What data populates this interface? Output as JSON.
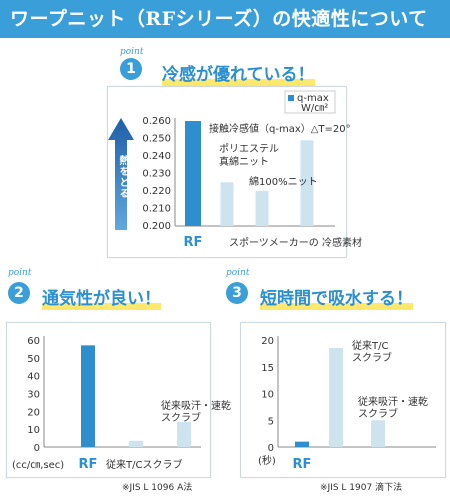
{
  "page": {
    "title": "ワープニット（RFシリーズ）の快適性について"
  },
  "colors": {
    "header": "#3a9fd8",
    "bar_dark": "#2f8fce",
    "bar_light": "#cde4ef",
    "accent_text": "#2c8fcf",
    "highlight": "#ffe86b"
  },
  "sections": [
    {
      "point_word": "point",
      "number": "1",
      "heading": "冷感が優れている！"
    },
    {
      "point_word": "point",
      "number": "2",
      "heading": "通気性が良い！"
    },
    {
      "point_word": "point",
      "number": "3",
      "heading": "短時間で吸水する！"
    }
  ],
  "chart_data": [
    {
      "type": "bar",
      "series_label": "q-max W/㎝²",
      "legend_line1": "q-max",
      "legend_line2": "W/㎝²",
      "legend_placement": "top-right",
      "subtitle": "接触冷感値（q-max）△T=20°",
      "arrow_label": "熱をとる",
      "yticks": [
        "0.260",
        "0.250",
        "0.240",
        "0.230",
        "0.220",
        "0.210",
        "0.200"
      ],
      "ylim": [
        0.2,
        0.26
      ],
      "categories": [
        "RF",
        "ポリエステル\n真綿ニット",
        "綿100%ニット",
        "スポーツメーカーの冷感素材"
      ],
      "values": [
        0.26,
        0.225,
        0.22,
        0.249
      ],
      "x_labels": {
        "rf": "RF",
        "sports": "スポーツメーカーの 冷感素材"
      },
      "bar_labels": [
        {
          "lines": [
            "ポリエステル",
            "真綿ニット"
          ]
        },
        {
          "lines": [
            "綿100%ニット"
          ]
        }
      ]
    },
    {
      "type": "bar",
      "ylabel": "(cc/㎝,sec)",
      "yticks": [
        "60",
        "50",
        "40",
        "30",
        "20",
        "10",
        "0"
      ],
      "ylim": [
        0,
        60
      ],
      "categories": [
        "RF",
        "従来T/Cスクラブ",
        "従来吸汗・速乾スクラブ"
      ],
      "values": [
        57,
        3.5,
        14
      ],
      "x_labels": {
        "rf": "RF",
        "tc": "従来T/Cスクラブ"
      },
      "bar_labels": [
        {
          "lines": [
            "従来吸汗・速乾",
            "スクラブ"
          ]
        }
      ],
      "note": "※JIS L 1096 A法"
    },
    {
      "type": "bar",
      "ylabel": "(秒)",
      "yticks": [
        "20",
        "15",
        "10",
        "5",
        "0"
      ],
      "ylim": [
        0,
        20
      ],
      "categories": [
        "RF",
        "従来T/Cスクラブ",
        "従来吸汗・速乾スクラブ"
      ],
      "values": [
        1,
        18.5,
        5
      ],
      "x_labels": {
        "rf": "RF"
      },
      "bar_labels": [
        {
          "lines": [
            "従来T/C",
            "スクラブ"
          ]
        },
        {
          "lines": [
            "従来吸汗・速乾",
            "スクラブ"
          ]
        }
      ],
      "note": "※JIS L 1907 滴下法"
    }
  ]
}
